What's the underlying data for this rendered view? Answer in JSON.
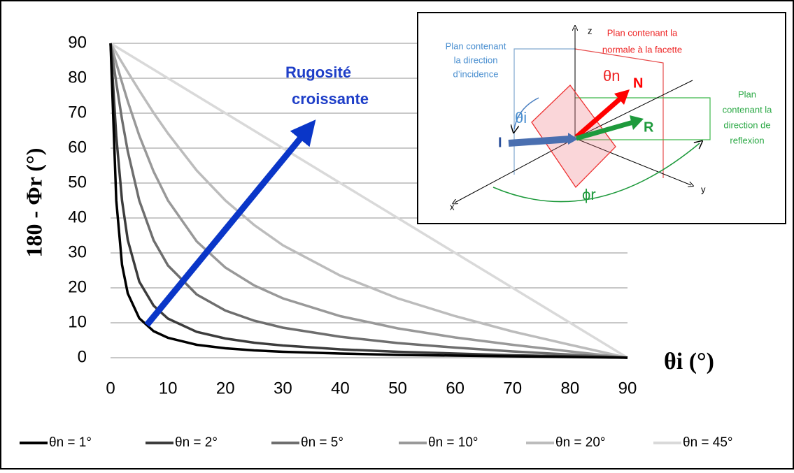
{
  "chart_data": {
    "type": "line",
    "ylabel": "180 - Φr  (°)",
    "xlabel": "θi (°)",
    "xlim": [
      0,
      90
    ],
    "xticks": [
      0,
      10,
      20,
      30,
      40,
      50,
      60,
      70,
      80,
      90
    ],
    "ylim": [
      0,
      90
    ],
    "yticks": [
      0,
      10,
      20,
      30,
      40,
      50,
      60,
      70,
      80,
      90
    ],
    "grid": true,
    "legend": "bottom",
    "x": [
      0,
      1,
      2,
      3,
      5,
      7.5,
      10,
      15,
      20,
      25,
      30,
      40,
      50,
      60,
      70,
      80,
      90
    ],
    "series": [
      {
        "name": "θn = 1°",
        "color": "#000000",
        "values": [
          90,
          45.0,
          26.6,
          18.4,
          11.3,
          7.6,
          5.7,
          3.7,
          2.7,
          2.1,
          1.7,
          1.2,
          0.8,
          0.6,
          0.4,
          0.2,
          0
        ]
      },
      {
        "name": "θn = 2°",
        "color": "#3c3c3c",
        "values": [
          90,
          63.4,
          45.0,
          33.7,
          21.8,
          14.9,
          11.2,
          7.4,
          5.5,
          4.3,
          3.5,
          2.4,
          1.7,
          1.2,
          0.7,
          0.4,
          0
        ]
      },
      {
        "name": "θn = 5°",
        "color": "#6e6e6e",
        "values": [
          90,
          78.7,
          68.2,
          59.1,
          45.0,
          33.6,
          26.4,
          18.1,
          13.5,
          10.6,
          8.6,
          6.0,
          4.2,
          2.9,
          1.8,
          0.9,
          0
        ]
      },
      {
        "name": "θn = 10°",
        "color": "#999999",
        "values": [
          90,
          84.3,
          78.8,
          73.4,
          63.6,
          53.3,
          45.0,
          33.3,
          25.8,
          20.7,
          17.0,
          11.9,
          8.4,
          5.8,
          3.7,
          1.8,
          0
        ]
      },
      {
        "name": "θn = 20°",
        "color": "#bcbcbc",
        "values": [
          90,
          87.3,
          84.5,
          81.8,
          76.5,
          70.1,
          64.2,
          53.6,
          45.0,
          38.0,
          32.2,
          23.5,
          17.0,
          11.9,
          7.5,
          3.7,
          0
        ]
      },
      {
        "name": "θn = 45°",
        "color": "#d9d9d9",
        "values": [
          90,
          89,
          88,
          87,
          85,
          82.5,
          80,
          75,
          70,
          65,
          60,
          50,
          40,
          30,
          20,
          10,
          0
        ]
      }
    ],
    "annotation": [
      "Rugosité",
      "croissante"
    ],
    "inset": {
      "axes": [
        "z",
        "x",
        "y"
      ],
      "plane_incidence": [
        "Plan contenant",
        "la direction",
        "d’incidence"
      ],
      "plane_normal": [
        "Plan contenant la",
        "normale à la facette"
      ],
      "plane_reflexion": [
        "Plan",
        "contenant la",
        "direction de",
        "reflexion"
      ],
      "theta_i": "θi",
      "theta_n": "θn",
      "phi_r": "ϕr",
      "vec_n": "N",
      "vec_i": "I",
      "vec_r": "R"
    }
  }
}
